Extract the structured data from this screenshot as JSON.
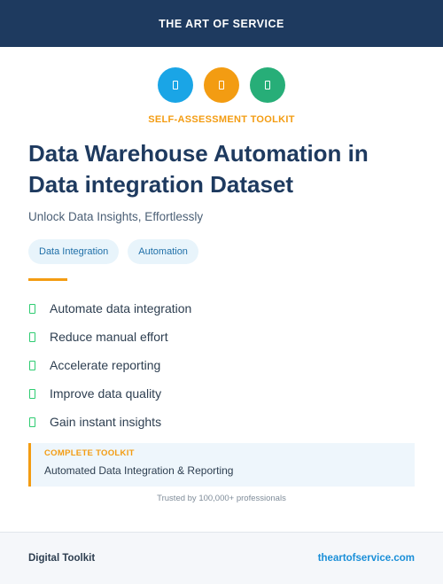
{
  "header": {
    "brand": "THE ART OF SERVICE"
  },
  "icons": [
    {
      "name": "document-icon",
      "color": "#1aa5e6"
    },
    {
      "name": "document-icon",
      "color": "#f39c12"
    },
    {
      "name": "document-icon",
      "color": "#27ae78"
    }
  ],
  "kicker": "SELF-ASSESSMENT TOOLKIT",
  "title": "Data Warehouse Automation in Data integration Dataset",
  "subtitle": "Unlock Data Insights, Effortlessly",
  "tags": [
    "Data Integration",
    "Automation"
  ],
  "features": [
    "Automate data integration",
    "Reduce manual effort",
    "Accelerate reporting",
    "Improve data quality",
    "Gain instant insights"
  ],
  "callout": {
    "kicker": "COMPLETE TOOLKIT",
    "text": "Automated Data Integration & Reporting"
  },
  "trusted": "Trusted by 100,000+ professionals",
  "footer": {
    "left": "Digital Toolkit",
    "right": "theartofservice.com"
  },
  "colors": {
    "navy": "#1e3a5f",
    "accent_orange": "#f39c12",
    "check_green": "#2ecc71",
    "link_blue": "#1a8fd8"
  }
}
